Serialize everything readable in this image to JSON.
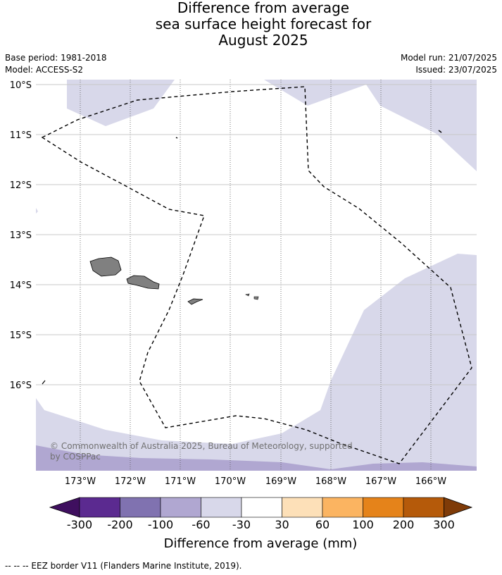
{
  "title": {
    "line1": "Difference from average",
    "line2": "sea surface height forecast for",
    "line3": "August 2025"
  },
  "meta": {
    "base_period": "Base period: 1981-2018",
    "model": "Model: ACCESS-S2",
    "model_run": "Model run: 21/07/2025",
    "issued": "Issued: 23/07/2025"
  },
  "map": {
    "lat_labels": [
      "10°S",
      "11°S",
      "12°S",
      "13°S",
      "14°S",
      "15°S",
      "16°S"
    ],
    "lon_labels": [
      "173°W",
      "172°W",
      "171°W",
      "170°W",
      "169°W",
      "168°W",
      "167°W",
      "166°W"
    ],
    "land_color": "#808080",
    "copyright": "© Commonwealth of Australia 2025, Bureau of Meteorology, supported by COSPPac"
  },
  "colorbar": {
    "colors": [
      "#3f0f5f",
      "#5b2a90",
      "#8072b0",
      "#b0a7d1",
      "#d8d8ea",
      "#ffffff",
      "#fde0b8",
      "#fbb461",
      "#e5831a",
      "#b55a0a",
      "#7f3b08"
    ],
    "ticks": [
      "-300",
      "-200",
      "-100",
      "-60",
      "-30",
      "30",
      "60",
      "100",
      "200",
      "300"
    ],
    "label": "Difference from average (mm)"
  },
  "footer": "--  --  -- EEZ border V11 (Flanders Marine Institute, 2019)."
}
